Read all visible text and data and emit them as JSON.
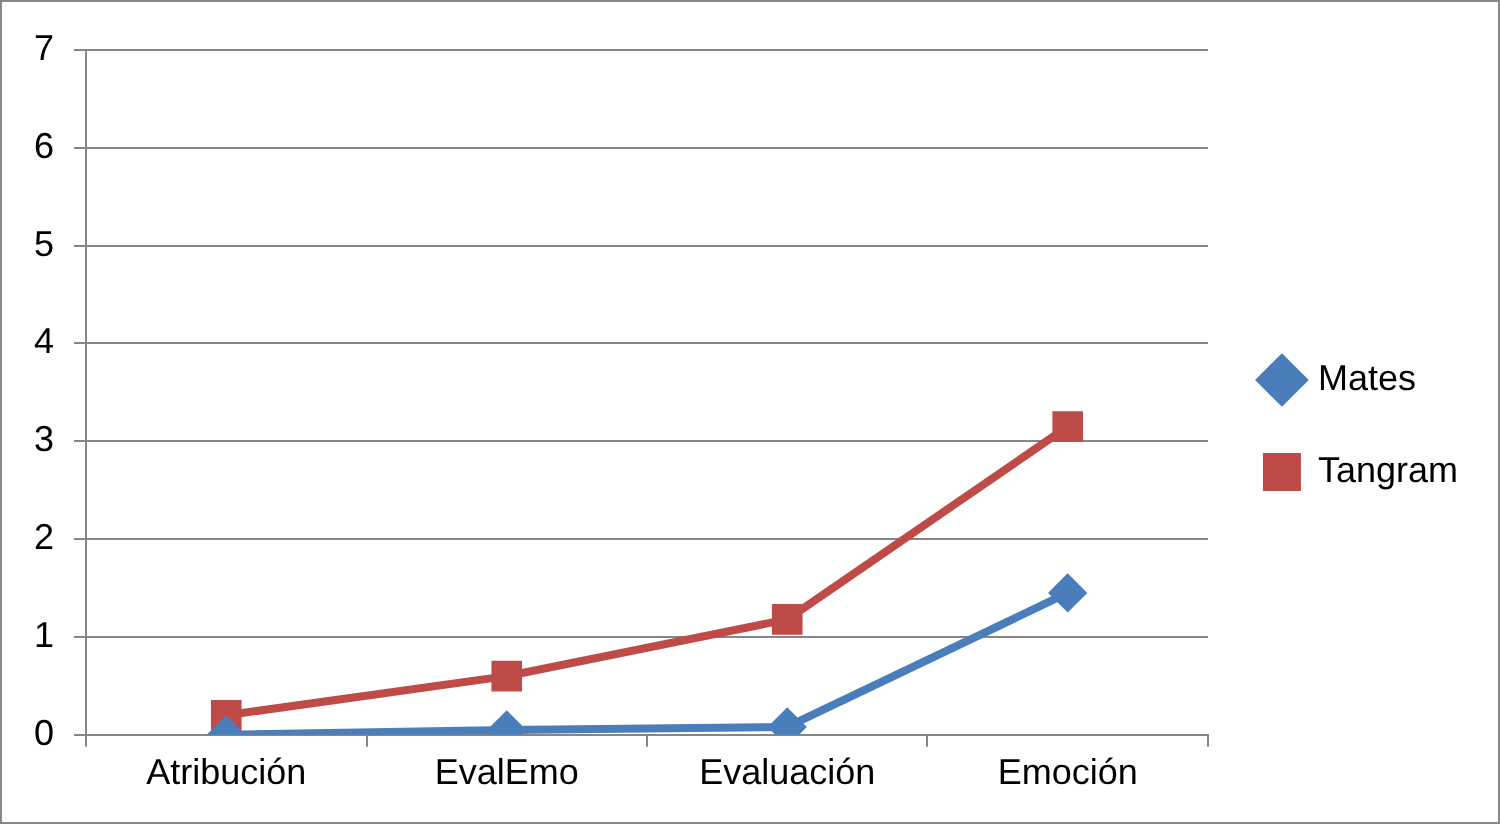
{
  "chart_data": {
    "type": "line",
    "categories": [
      "Atribución",
      "EvalEmo",
      "Evaluación",
      "Emoción"
    ],
    "series": [
      {
        "name": "Mates",
        "color": "#4a7ebb",
        "marker": "diamond",
        "values": [
          0,
          0.05,
          0.08,
          1.45
        ]
      },
      {
        "name": "Tangram",
        "color": "#be4b48",
        "marker": "square",
        "values": [
          0.2,
          0.6,
          1.18,
          3.15
        ]
      }
    ],
    "ylim": [
      0,
      7
    ],
    "yticks": [
      0,
      1,
      2,
      3,
      4,
      5,
      6,
      7
    ],
    "grid": "y",
    "legend": "right",
    "line_style": "solid"
  }
}
